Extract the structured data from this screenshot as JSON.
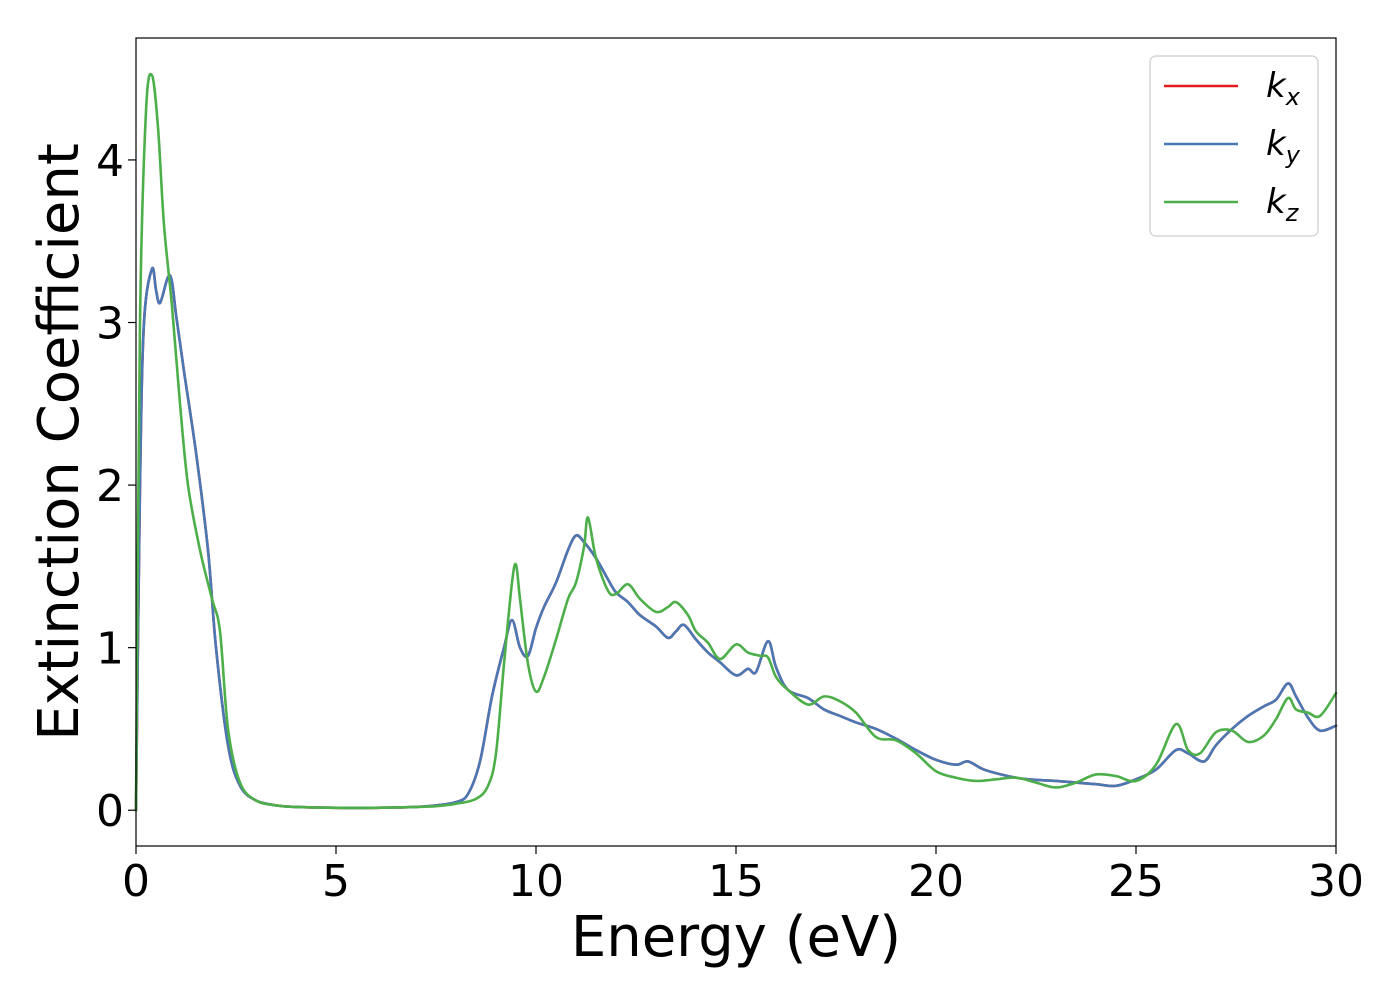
{
  "chart_data": {
    "type": "line",
    "title": "",
    "xlabel": "Energy (eV)",
    "ylabel": "Extinction Coefficient",
    "xlim": [
      0,
      30
    ],
    "ylim": [
      -0.22,
      4.75
    ],
    "xticks": [
      0,
      5,
      10,
      15,
      20,
      25,
      30
    ],
    "xtick_labels": [
      "0",
      "5",
      "10",
      "15",
      "20",
      "25",
      "30"
    ],
    "yticks": [
      0,
      1,
      2,
      3,
      4
    ],
    "ytick_labels": [
      "0",
      "1",
      "2",
      "3",
      "4"
    ],
    "grid": false,
    "legend_position": "top-right",
    "series": [
      {
        "name": "k_x",
        "legend_base": "k",
        "legend_sub": "x",
        "color": "#e41a1c",
        "points": [
          [
            0,
            0
          ],
          [
            0.1,
            2.0
          ],
          [
            0.2,
            3.0
          ],
          [
            0.4,
            3.33
          ],
          [
            0.5,
            3.2
          ],
          [
            0.6,
            3.12
          ],
          [
            0.8,
            3.28
          ],
          [
            0.9,
            3.25
          ],
          [
            1.0,
            3.05
          ],
          [
            1.2,
            2.7
          ],
          [
            1.5,
            2.2
          ],
          [
            1.8,
            1.6
          ],
          [
            2.0,
            1.0
          ],
          [
            2.3,
            0.4
          ],
          [
            2.6,
            0.15
          ],
          [
            3.0,
            0.06
          ],
          [
            3.5,
            0.03
          ],
          [
            4.0,
            0.02
          ],
          [
            5.0,
            0.015
          ],
          [
            6.0,
            0.015
          ],
          [
            7.0,
            0.02
          ],
          [
            7.5,
            0.03
          ],
          [
            8.0,
            0.05
          ],
          [
            8.3,
            0.1
          ],
          [
            8.6,
            0.3
          ],
          [
            8.9,
            0.7
          ],
          [
            9.2,
            1.0
          ],
          [
            9.4,
            1.17
          ],
          [
            9.6,
            1.0
          ],
          [
            9.8,
            0.95
          ],
          [
            10.0,
            1.12
          ],
          [
            10.2,
            1.25
          ],
          [
            10.5,
            1.4
          ],
          [
            10.8,
            1.6
          ],
          [
            11.0,
            1.69
          ],
          [
            11.2,
            1.65
          ],
          [
            11.5,
            1.55
          ],
          [
            11.8,
            1.42
          ],
          [
            12.0,
            1.34
          ],
          [
            12.3,
            1.28
          ],
          [
            12.6,
            1.2
          ],
          [
            13.0,
            1.13
          ],
          [
            13.3,
            1.06
          ],
          [
            13.5,
            1.1
          ],
          [
            13.7,
            1.14
          ],
          [
            14.0,
            1.05
          ],
          [
            14.3,
            0.97
          ],
          [
            14.6,
            0.91
          ],
          [
            15.0,
            0.83
          ],
          [
            15.3,
            0.87
          ],
          [
            15.5,
            0.85
          ],
          [
            15.8,
            1.04
          ],
          [
            16.0,
            0.88
          ],
          [
            16.3,
            0.74
          ],
          [
            16.8,
            0.69
          ],
          [
            17.2,
            0.62
          ],
          [
            17.6,
            0.58
          ],
          [
            18.0,
            0.54
          ],
          [
            18.5,
            0.5
          ],
          [
            19.0,
            0.44
          ],
          [
            19.5,
            0.37
          ],
          [
            20.0,
            0.31
          ],
          [
            20.5,
            0.28
          ],
          [
            20.8,
            0.3
          ],
          [
            21.2,
            0.25
          ],
          [
            21.8,
            0.21
          ],
          [
            22.3,
            0.19
          ],
          [
            23.0,
            0.18
          ],
          [
            23.5,
            0.17
          ],
          [
            24.0,
            0.16
          ],
          [
            24.5,
            0.15
          ],
          [
            25.0,
            0.19
          ],
          [
            25.5,
            0.25
          ],
          [
            26.0,
            0.37
          ],
          [
            26.3,
            0.35
          ],
          [
            26.7,
            0.3
          ],
          [
            27.0,
            0.4
          ],
          [
            27.4,
            0.5
          ],
          [
            27.8,
            0.58
          ],
          [
            28.2,
            0.64
          ],
          [
            28.5,
            0.68
          ],
          [
            28.8,
            0.78
          ],
          [
            29.0,
            0.7
          ],
          [
            29.3,
            0.57
          ],
          [
            29.6,
            0.49
          ],
          [
            30.0,
            0.52
          ]
        ]
      },
      {
        "name": "k_y",
        "legend_base": "k",
        "legend_sub": "y",
        "color": "#4a78b4",
        "points": [
          [
            0,
            0
          ],
          [
            0.1,
            2.0
          ],
          [
            0.2,
            3.0
          ],
          [
            0.4,
            3.33
          ],
          [
            0.5,
            3.2
          ],
          [
            0.6,
            3.12
          ],
          [
            0.8,
            3.28
          ],
          [
            0.9,
            3.25
          ],
          [
            1.0,
            3.05
          ],
          [
            1.2,
            2.7
          ],
          [
            1.5,
            2.2
          ],
          [
            1.8,
            1.6
          ],
          [
            2.0,
            1.0
          ],
          [
            2.3,
            0.4
          ],
          [
            2.6,
            0.15
          ],
          [
            3.0,
            0.06
          ],
          [
            3.5,
            0.03
          ],
          [
            4.0,
            0.02
          ],
          [
            5.0,
            0.015
          ],
          [
            6.0,
            0.015
          ],
          [
            7.0,
            0.02
          ],
          [
            7.5,
            0.03
          ],
          [
            8.0,
            0.05
          ],
          [
            8.3,
            0.1
          ],
          [
            8.6,
            0.3
          ],
          [
            8.9,
            0.7
          ],
          [
            9.2,
            1.0
          ],
          [
            9.4,
            1.17
          ],
          [
            9.6,
            1.0
          ],
          [
            9.8,
            0.95
          ],
          [
            10.0,
            1.12
          ],
          [
            10.2,
            1.25
          ],
          [
            10.5,
            1.4
          ],
          [
            10.8,
            1.6
          ],
          [
            11.0,
            1.69
          ],
          [
            11.2,
            1.65
          ],
          [
            11.5,
            1.55
          ],
          [
            11.8,
            1.42
          ],
          [
            12.0,
            1.34
          ],
          [
            12.3,
            1.28
          ],
          [
            12.6,
            1.2
          ],
          [
            13.0,
            1.13
          ],
          [
            13.3,
            1.06
          ],
          [
            13.5,
            1.1
          ],
          [
            13.7,
            1.14
          ],
          [
            14.0,
            1.05
          ],
          [
            14.3,
            0.97
          ],
          [
            14.6,
            0.91
          ],
          [
            15.0,
            0.83
          ],
          [
            15.3,
            0.87
          ],
          [
            15.5,
            0.85
          ],
          [
            15.8,
            1.04
          ],
          [
            16.0,
            0.88
          ],
          [
            16.3,
            0.74
          ],
          [
            16.8,
            0.69
          ],
          [
            17.2,
            0.62
          ],
          [
            17.6,
            0.58
          ],
          [
            18.0,
            0.54
          ],
          [
            18.5,
            0.5
          ],
          [
            19.0,
            0.44
          ],
          [
            19.5,
            0.37
          ],
          [
            20.0,
            0.31
          ],
          [
            20.5,
            0.28
          ],
          [
            20.8,
            0.3
          ],
          [
            21.2,
            0.25
          ],
          [
            21.8,
            0.21
          ],
          [
            22.3,
            0.19
          ],
          [
            23.0,
            0.18
          ],
          [
            23.5,
            0.17
          ],
          [
            24.0,
            0.16
          ],
          [
            24.5,
            0.15
          ],
          [
            25.0,
            0.19
          ],
          [
            25.5,
            0.25
          ],
          [
            26.0,
            0.37
          ],
          [
            26.3,
            0.35
          ],
          [
            26.7,
            0.3
          ],
          [
            27.0,
            0.4
          ],
          [
            27.4,
            0.5
          ],
          [
            27.8,
            0.58
          ],
          [
            28.2,
            0.64
          ],
          [
            28.5,
            0.68
          ],
          [
            28.8,
            0.78
          ],
          [
            29.0,
            0.7
          ],
          [
            29.3,
            0.57
          ],
          [
            29.6,
            0.49
          ],
          [
            30.0,
            0.52
          ]
        ]
      },
      {
        "name": "k_z",
        "legend_base": "k",
        "legend_sub": "z",
        "color": "#4daf4a",
        "points": [
          [
            0,
            0
          ],
          [
            0.1,
            3.0
          ],
          [
            0.25,
            4.3
          ],
          [
            0.4,
            4.52
          ],
          [
            0.55,
            4.2
          ],
          [
            0.7,
            3.6
          ],
          [
            0.9,
            3.1
          ],
          [
            1.1,
            2.5
          ],
          [
            1.3,
            2.0
          ],
          [
            1.6,
            1.6
          ],
          [
            1.9,
            1.3
          ],
          [
            2.1,
            1.1
          ],
          [
            2.3,
            0.5
          ],
          [
            2.6,
            0.17
          ],
          [
            3.0,
            0.06
          ],
          [
            3.5,
            0.03
          ],
          [
            4.0,
            0.02
          ],
          [
            5.0,
            0.015
          ],
          [
            6.0,
            0.015
          ],
          [
            7.0,
            0.02
          ],
          [
            7.5,
            0.025
          ],
          [
            8.0,
            0.04
          ],
          [
            8.5,
            0.07
          ],
          [
            8.8,
            0.15
          ],
          [
            9.0,
            0.35
          ],
          [
            9.2,
            0.9
          ],
          [
            9.4,
            1.4
          ],
          [
            9.5,
            1.51
          ],
          [
            9.6,
            1.3
          ],
          [
            9.8,
            0.9
          ],
          [
            10.0,
            0.73
          ],
          [
            10.2,
            0.82
          ],
          [
            10.5,
            1.05
          ],
          [
            10.8,
            1.3
          ],
          [
            11.0,
            1.4
          ],
          [
            11.2,
            1.62
          ],
          [
            11.3,
            1.8
          ],
          [
            11.5,
            1.55
          ],
          [
            11.8,
            1.35
          ],
          [
            12.0,
            1.33
          ],
          [
            12.3,
            1.39
          ],
          [
            12.6,
            1.3
          ],
          [
            13.0,
            1.22
          ],
          [
            13.3,
            1.25
          ],
          [
            13.5,
            1.28
          ],
          [
            13.8,
            1.2
          ],
          [
            14.0,
            1.1
          ],
          [
            14.3,
            1.03
          ],
          [
            14.6,
            0.93
          ],
          [
            15.0,
            1.02
          ],
          [
            15.3,
            0.97
          ],
          [
            15.6,
            0.95
          ],
          [
            15.8,
            0.94
          ],
          [
            16.0,
            0.82
          ],
          [
            16.3,
            0.74
          ],
          [
            16.8,
            0.65
          ],
          [
            17.2,
            0.7
          ],
          [
            17.6,
            0.67
          ],
          [
            18.0,
            0.6
          ],
          [
            18.5,
            0.45
          ],
          [
            19.0,
            0.43
          ],
          [
            19.5,
            0.35
          ],
          [
            20.0,
            0.24
          ],
          [
            20.5,
            0.2
          ],
          [
            21.0,
            0.18
          ],
          [
            21.5,
            0.19
          ],
          [
            22.0,
            0.2
          ],
          [
            22.5,
            0.17
          ],
          [
            23.0,
            0.14
          ],
          [
            23.5,
            0.17
          ],
          [
            24.0,
            0.22
          ],
          [
            24.5,
            0.21
          ],
          [
            25.0,
            0.18
          ],
          [
            25.5,
            0.28
          ],
          [
            26.0,
            0.53
          ],
          [
            26.3,
            0.37
          ],
          [
            26.6,
            0.35
          ],
          [
            27.0,
            0.48
          ],
          [
            27.4,
            0.49
          ],
          [
            27.8,
            0.42
          ],
          [
            28.2,
            0.46
          ],
          [
            28.5,
            0.56
          ],
          [
            28.8,
            0.69
          ],
          [
            29.0,
            0.62
          ],
          [
            29.3,
            0.6
          ],
          [
            29.6,
            0.58
          ],
          [
            30.0,
            0.72
          ]
        ]
      }
    ]
  }
}
